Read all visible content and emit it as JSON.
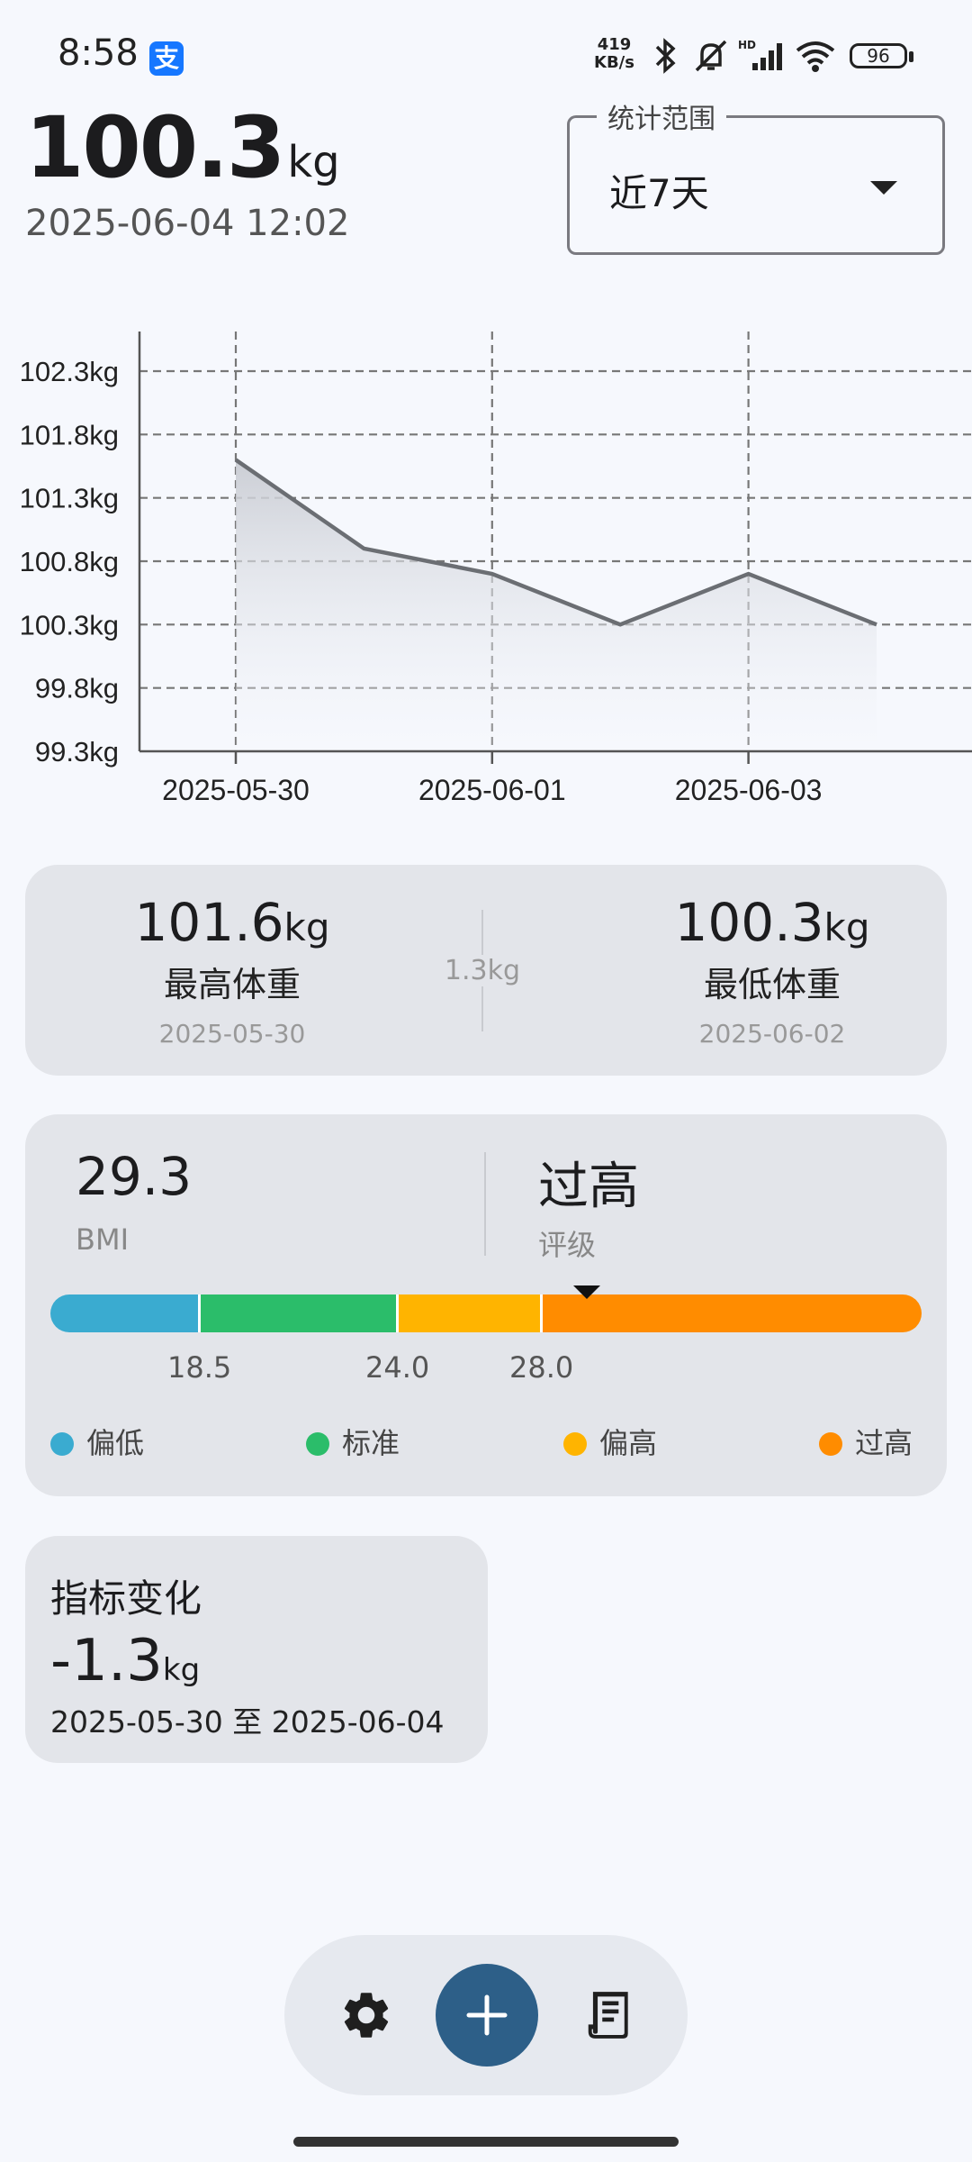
{
  "status_bar": {
    "time": "8:58",
    "alipay_glyph": "支",
    "net_speed_value": "419",
    "net_speed_unit": "KB/s",
    "battery": "96",
    "icons": [
      "bluetooth-icon",
      "mute-bell-icon",
      "hd-signal-icon",
      "wifi-icon",
      "battery-icon"
    ]
  },
  "header": {
    "weight": "100.3",
    "unit": "kg",
    "timestamp": "2025-06-04 12:02"
  },
  "range_selector": {
    "legend": "统计范围",
    "value": "近7天"
  },
  "chart_data": {
    "type": "area",
    "x": [
      "2025-05-30",
      "2025-05-31",
      "2025-06-01",
      "2025-06-02",
      "2025-06-03",
      "2025-06-04"
    ],
    "series": [
      {
        "values": [
          101.6,
          100.9,
          100.7,
          100.3,
          100.7,
          100.3
        ]
      }
    ],
    "ylim": [
      99.3,
      102.3
    ],
    "y_ticks": [
      "102.3kg",
      "101.8kg",
      "101.3kg",
      "100.8kg",
      "100.3kg",
      "99.8kg",
      "99.3kg"
    ],
    "x_tick_labels": [
      "2025-05-30",
      "2025-06-01",
      "2025-06-03"
    ],
    "grid": true,
    "line_color": "#6b6e73"
  },
  "extremes": {
    "max": {
      "value": "101.6",
      "unit": "kg",
      "label": "最高体重",
      "date": "2025-05-30"
    },
    "min": {
      "value": "100.3",
      "unit": "kg",
      "label": "最低体重",
      "date": "2025-06-02"
    },
    "diff": "1.3kg"
  },
  "bmi": {
    "value": "29.3",
    "label": "BMI",
    "bmi_value": 29.3,
    "rating": "过高",
    "rating_label": "评级",
    "scale_min": 14.4,
    "scale_max": 38.6,
    "thresholds": [
      "18.5",
      "24.0",
      "28.0"
    ],
    "legend": [
      {
        "label": "偏低",
        "color": "#3aabd0"
      },
      {
        "label": "标准",
        "color": "#2bbd6a"
      },
      {
        "label": "偏高",
        "color": "#ffb400"
      },
      {
        "label": "过高",
        "color": "#ff8c00"
      }
    ]
  },
  "change": {
    "title": "指标变化",
    "value": "-1.3",
    "unit": "kg",
    "range": "2025-05-30 至 2025-06-04"
  },
  "nav": {
    "accent": "#2d5f88",
    "icons": [
      "gear-icon",
      "plus-icon",
      "receipt-icon"
    ]
  }
}
